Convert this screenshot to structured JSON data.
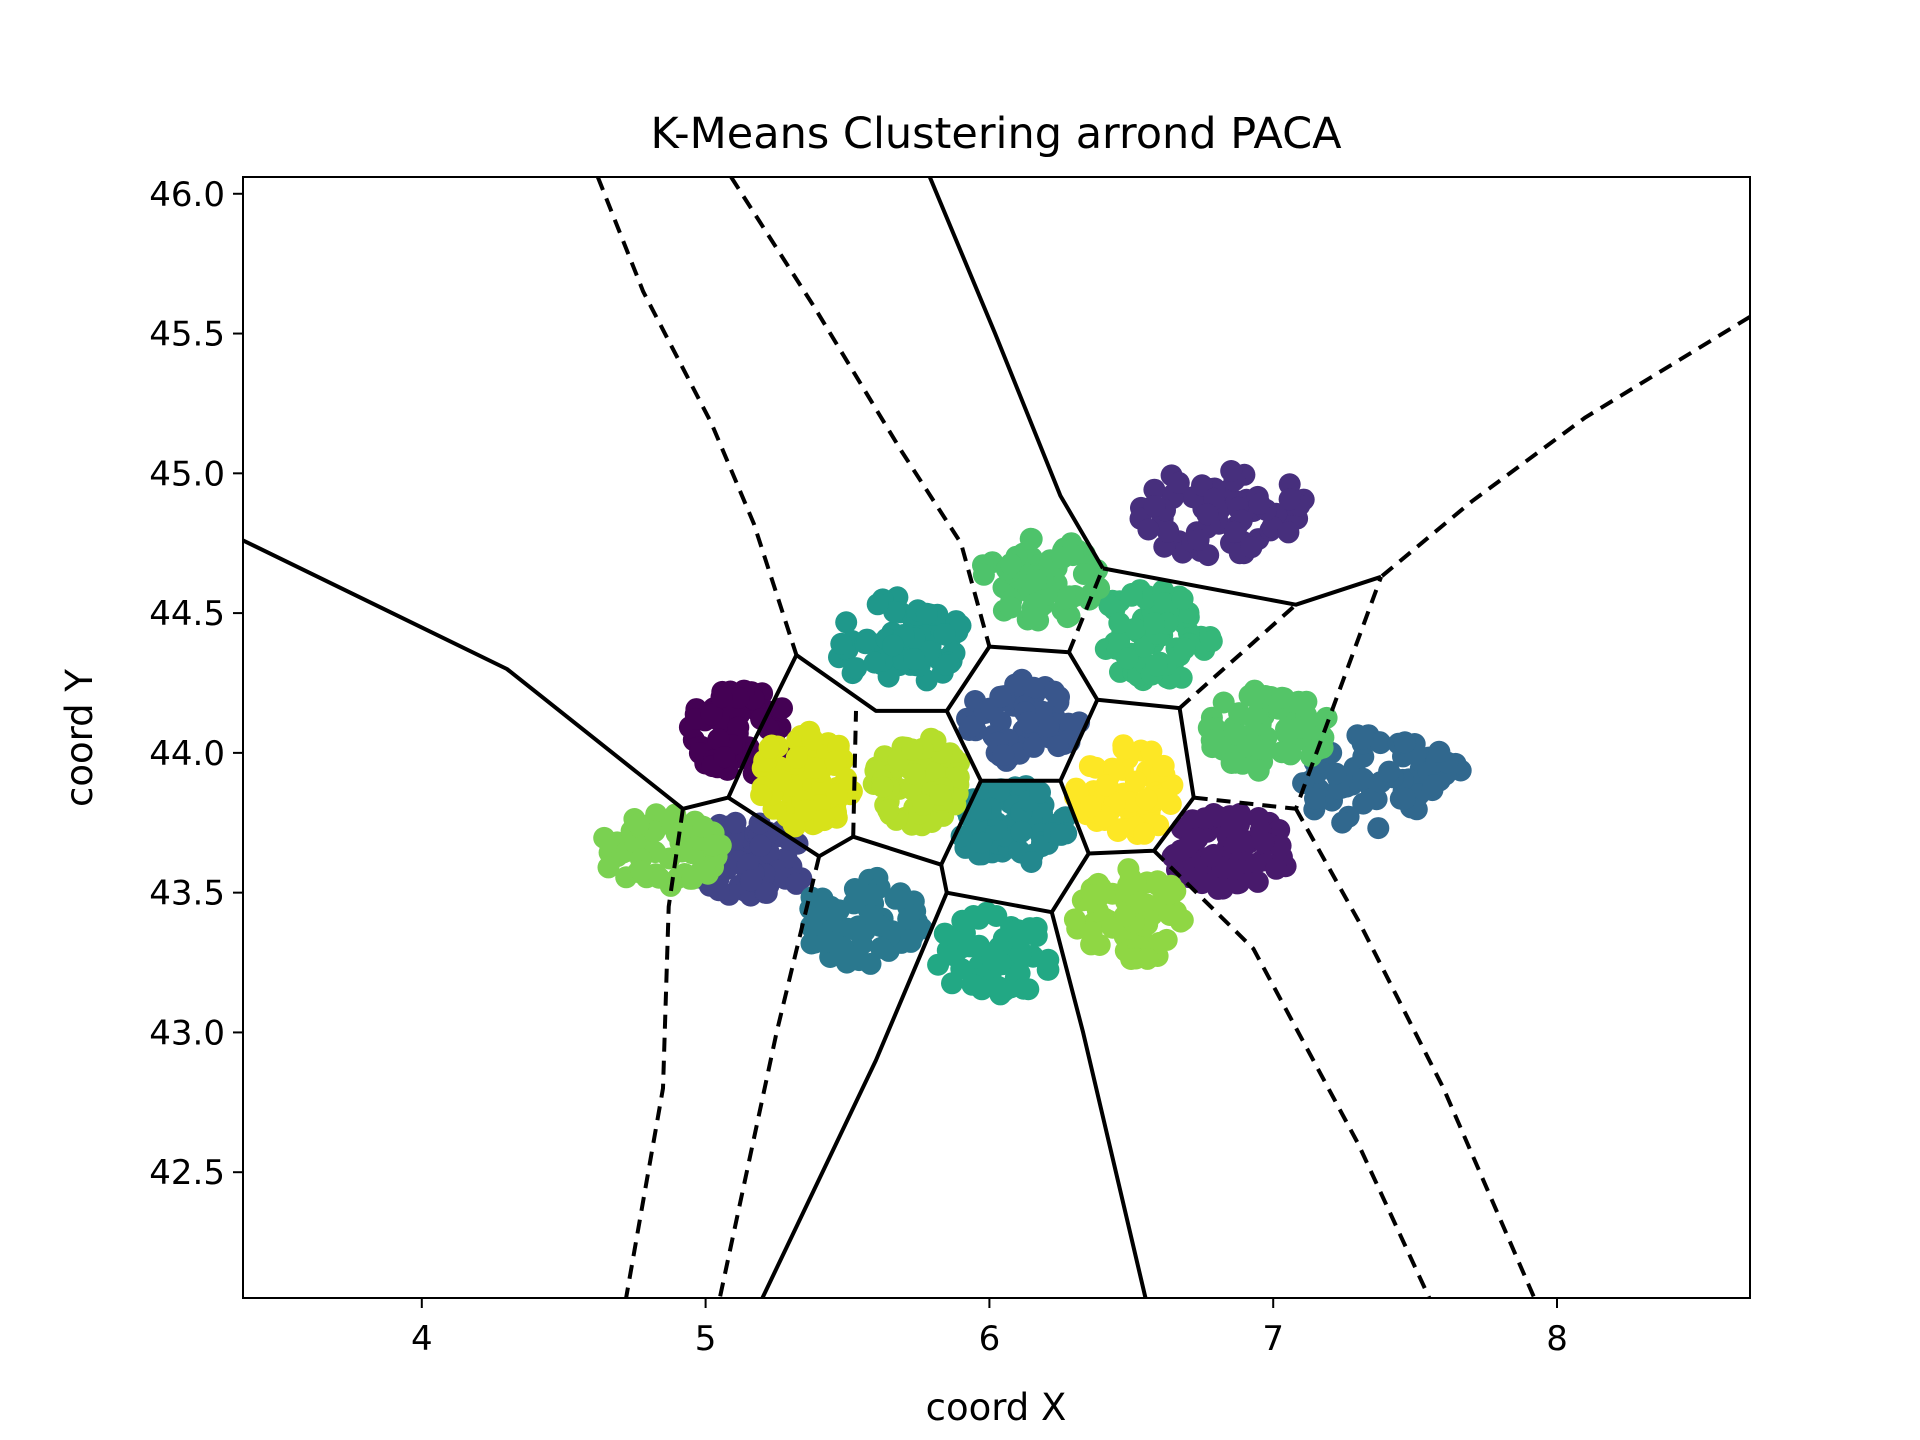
{
  "chart_data": {
    "type": "scatter",
    "title": "K-Means Clustering arrond PACA",
    "xlabel": "coord X",
    "ylabel": "coord Y",
    "xlim": [
      3.37,
      8.68
    ],
    "ylim": [
      42.05,
      46.06
    ],
    "xticks": [
      "4",
      "5",
      "6",
      "7",
      "8"
    ],
    "yticks": [
      "42.5",
      "43.0",
      "43.5",
      "44.0",
      "44.5",
      "45.0",
      "45.5",
      "46.0"
    ],
    "colormap": "viridis",
    "grid": false,
    "legend": "none",
    "clusters": [
      {
        "center": [
          5.12,
          44.08
        ],
        "spread": [
          0.18,
          0.16
        ],
        "color": "#440154"
      },
      {
        "center": [
          6.85,
          43.65
        ],
        "spread": [
          0.22,
          0.14
        ],
        "color": "#481a6c"
      },
      {
        "center": [
          6.82,
          44.86
        ],
        "spread": [
          0.3,
          0.17
        ],
        "color": "#472f7d"
      },
      {
        "center": [
          5.15,
          43.62
        ],
        "spread": [
          0.22,
          0.14
        ],
        "color": "#414487"
      },
      {
        "center": [
          6.12,
          44.12
        ],
        "spread": [
          0.2,
          0.16
        ],
        "color": "#39568c"
      },
      {
        "center": [
          7.38,
          43.9
        ],
        "spread": [
          0.3,
          0.18
        ],
        "color": "#31688e"
      },
      {
        "center": [
          5.55,
          43.4
        ],
        "spread": [
          0.22,
          0.16
        ],
        "color": "#2a788e"
      },
      {
        "center": [
          6.08,
          43.74
        ],
        "spread": [
          0.2,
          0.15
        ],
        "color": "#23888e"
      },
      {
        "center": [
          5.68,
          44.4
        ],
        "spread": [
          0.24,
          0.16
        ],
        "color": "#1f988b"
      },
      {
        "center": [
          6.02,
          43.28
        ],
        "spread": [
          0.22,
          0.15
        ],
        "color": "#22a884"
      },
      {
        "center": [
          6.58,
          44.42
        ],
        "spread": [
          0.22,
          0.18
        ],
        "color": "#35b779"
      },
      {
        "center": [
          6.18,
          44.62
        ],
        "spread": [
          0.22,
          0.15
        ],
        "color": "#4ec36b"
      },
      {
        "center": [
          6.98,
          44.08
        ],
        "spread": [
          0.22,
          0.15
        ],
        "color": "#54c568"
      },
      {
        "center": [
          4.85,
          43.65
        ],
        "spread": [
          0.22,
          0.14
        ],
        "color": "#7ad151"
      },
      {
        "center": [
          6.5,
          43.42
        ],
        "spread": [
          0.2,
          0.17
        ],
        "color": "#8fd744"
      },
      {
        "center": [
          5.75,
          43.9
        ],
        "spread": [
          0.16,
          0.16
        ],
        "color": "#b5de2b"
      },
      {
        "center": [
          5.35,
          43.9
        ],
        "spread": [
          0.17,
          0.18
        ],
        "color": "#d8e219"
      },
      {
        "center": [
          6.48,
          43.86
        ],
        "spread": [
          0.18,
          0.17
        ],
        "color": "#fde725"
      }
    ],
    "boundaries": [
      {
        "style": "dashed",
        "points": [
          [
            4.62,
            46.06
          ],
          [
            4.78,
            45.65
          ],
          [
            5.02,
            45.18
          ],
          [
            5.17,
            44.82
          ],
          [
            5.32,
            44.35
          ]
        ]
      },
      {
        "style": "dashed",
        "points": [
          [
            5.09,
            46.06
          ],
          [
            5.38,
            45.6
          ],
          [
            5.69,
            45.08
          ],
          [
            5.9,
            44.75
          ],
          [
            6.0,
            44.38
          ]
        ]
      },
      {
        "style": "solid",
        "points": [
          [
            5.79,
            46.06
          ],
          [
            6.02,
            45.5
          ],
          [
            6.25,
            44.92
          ],
          [
            6.4,
            44.66
          ]
        ]
      },
      {
        "style": "dashed",
        "points": [
          [
            8.68,
            45.56
          ],
          [
            8.1,
            45.2
          ],
          [
            7.7,
            44.9
          ],
          [
            7.38,
            44.63
          ]
        ]
      },
      {
        "style": "solid",
        "points": [
          [
            6.4,
            44.66
          ],
          [
            7.08,
            44.53
          ],
          [
            7.38,
            44.63
          ]
        ]
      },
      {
        "style": "solid",
        "points": [
          [
            3.37,
            44.76
          ],
          [
            4.3,
            44.3
          ],
          [
            4.92,
            43.8
          ]
        ]
      },
      {
        "style": "solid",
        "points": [
          [
            5.32,
            44.35
          ],
          [
            5.16,
            44.02
          ],
          [
            5.08,
            43.84
          ],
          [
            4.92,
            43.8
          ]
        ]
      },
      {
        "style": "dashed",
        "points": [
          [
            4.92,
            43.8
          ],
          [
            4.87,
            43.45
          ],
          [
            4.85,
            42.8
          ],
          [
            4.72,
            42.05
          ]
        ]
      },
      {
        "style": "solid",
        "points": [
          [
            5.08,
            43.84
          ],
          [
            5.4,
            43.63
          ],
          [
            5.52,
            43.7
          ],
          [
            5.83,
            43.6
          ]
        ]
      },
      {
        "style": "solid",
        "points": [
          [
            5.32,
            44.35
          ],
          [
            5.6,
            44.15
          ],
          [
            5.85,
            44.15
          ],
          [
            6.0,
            44.38
          ]
        ]
      },
      {
        "style": "dashed",
        "points": [
          [
            5.52,
            43.7
          ],
          [
            5.53,
            44.15
          ]
        ]
      },
      {
        "style": "solid",
        "points": [
          [
            5.85,
            44.15
          ],
          [
            5.97,
            43.9
          ],
          [
            5.83,
            43.6
          ]
        ]
      },
      {
        "style": "solid",
        "points": [
          [
            6.0,
            44.38
          ],
          [
            6.28,
            44.36
          ],
          [
            6.38,
            44.19
          ],
          [
            6.25,
            43.9
          ],
          [
            5.97,
            43.9
          ]
        ]
      },
      {
        "style": "dashed",
        "points": [
          [
            6.28,
            44.36
          ],
          [
            6.4,
            44.66
          ]
        ]
      },
      {
        "style": "dashed",
        "points": [
          [
            5.4,
            43.63
          ],
          [
            5.25,
            43.0
          ],
          [
            5.05,
            42.05
          ]
        ]
      },
      {
        "style": "solid",
        "points": [
          [
            5.83,
            43.6
          ],
          [
            5.85,
            43.5
          ],
          [
            6.22,
            43.43
          ],
          [
            6.35,
            43.64
          ],
          [
            6.25,
            43.9
          ]
        ]
      },
      {
        "style": "solid",
        "points": [
          [
            5.85,
            43.5
          ],
          [
            5.6,
            42.9
          ],
          [
            5.2,
            42.05
          ]
        ]
      },
      {
        "style": "solid",
        "points": [
          [
            6.22,
            43.43
          ],
          [
            6.33,
            43.0
          ],
          [
            6.55,
            42.05
          ]
        ]
      },
      {
        "style": "solid",
        "points": [
          [
            6.38,
            44.19
          ],
          [
            6.67,
            44.16
          ],
          [
            6.72,
            43.84
          ],
          [
            6.58,
            43.65
          ],
          [
            6.35,
            43.64
          ]
        ]
      },
      {
        "style": "dashed",
        "points": [
          [
            6.58,
            43.65
          ],
          [
            6.93,
            43.3
          ],
          [
            7.3,
            42.6
          ],
          [
            7.55,
            42.05
          ]
        ]
      },
      {
        "style": "dashed",
        "points": [
          [
            6.67,
            44.16
          ],
          [
            7.08,
            44.53
          ]
        ]
      },
      {
        "style": "dashed",
        "points": [
          [
            6.72,
            43.84
          ],
          [
            7.08,
            43.8
          ],
          [
            7.38,
            44.63
          ]
        ]
      },
      {
        "style": "dashed",
        "points": [
          [
            7.08,
            43.8
          ],
          [
            7.3,
            43.4
          ],
          [
            7.6,
            42.8
          ],
          [
            7.92,
            42.05
          ]
        ]
      }
    ]
  }
}
